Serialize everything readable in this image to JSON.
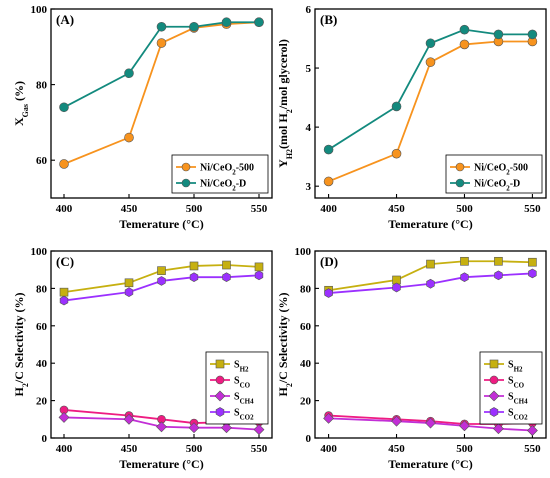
{
  "chart_data": [
    {
      "type": "line",
      "panel_label": "(A)",
      "xlabel": "Temerature (°C)",
      "ylabel_parts": [
        [
          "X",
          ""
        ],
        [
          "Gas",
          "sub"
        ],
        [
          " (%)",
          ""
        ]
      ],
      "x": [
        400,
        450,
        475,
        500,
        525,
        550
      ],
      "xlim": [
        390,
        560
      ],
      "xticks": [
        400,
        450,
        500,
        550
      ],
      "ylim": [
        50,
        100
      ],
      "yticks": [
        60,
        80,
        100
      ],
      "legend_position": "bottom-right",
      "series": [
        {
          "name_parts": [
            [
              "Ni/CeO",
              ""
            ],
            [
              "2",
              "sub"
            ],
            [
              "-500",
              ""
            ]
          ],
          "marker": "circle",
          "color": "#f7931e",
          "values": [
            59,
            66,
            91,
            95,
            96,
            96.5
          ]
        },
        {
          "name_parts": [
            [
              "Ni/CeO",
              ""
            ],
            [
              "2",
              "sub"
            ],
            [
              "-D",
              ""
            ]
          ],
          "marker": "circle",
          "color": "#138a7e",
          "values": [
            74,
            83,
            95.3,
            95.3,
            96.5,
            96.5
          ]
        }
      ]
    },
    {
      "type": "line",
      "panel_label": "(B)",
      "xlabel": "Temerature (°C)",
      "ylabel_parts": [
        [
          "Y",
          ""
        ],
        [
          "H2",
          "sub"
        ],
        [
          "(mol H",
          ""
        ],
        [
          "2",
          "sub"
        ],
        [
          "/mol glycerol)",
          ""
        ]
      ],
      "x": [
        400,
        450,
        475,
        500,
        525,
        550
      ],
      "xlim": [
        390,
        560
      ],
      "xticks": [
        400,
        450,
        500,
        550
      ],
      "ylim": [
        2.8,
        6
      ],
      "yticks": [
        3,
        4,
        5,
        6
      ],
      "legend_position": "bottom-right",
      "series": [
        {
          "name_parts": [
            [
              "Ni/CeO",
              ""
            ],
            [
              "2",
              "sub"
            ],
            [
              "-500",
              ""
            ]
          ],
          "marker": "circle",
          "color": "#f7931e",
          "values": [
            3.08,
            3.55,
            5.1,
            5.4,
            5.45,
            5.45
          ]
        },
        {
          "name_parts": [
            [
              "Ni/CeO",
              ""
            ],
            [
              "2",
              "sub"
            ],
            [
              "-D",
              ""
            ]
          ],
          "marker": "circle",
          "color": "#138a7e",
          "values": [
            3.62,
            4.35,
            5.42,
            5.65,
            5.57,
            5.57
          ]
        }
      ]
    },
    {
      "type": "line",
      "panel_label": "(C)",
      "xlabel": "Temerature (°C)",
      "ylabel_parts": [
        [
          "H",
          ""
        ],
        [
          "2",
          "sub"
        ],
        [
          "/C Selectivity (%)",
          ""
        ]
      ],
      "x": [
        400,
        450,
        475,
        500,
        525,
        550
      ],
      "xlim": [
        390,
        560
      ],
      "xticks": [
        400,
        450,
        500,
        550
      ],
      "ylim": [
        0,
        100
      ],
      "yticks": [
        0,
        20,
        40,
        60,
        80,
        100
      ],
      "legend_position": "right-center",
      "series": [
        {
          "name_parts": [
            [
              "S",
              ""
            ],
            [
              "H2",
              "sub"
            ]
          ],
          "marker": "square",
          "color": "#c6b010",
          "values": [
            78,
            83,
            89.5,
            92,
            92.5,
            91.5
          ]
        },
        {
          "name_parts": [
            [
              "S",
              ""
            ],
            [
              "CO",
              "sub"
            ]
          ],
          "marker": "circle",
          "color": "#ee1c82",
          "values": [
            15,
            12,
            10,
            8,
            8.5,
            8.5
          ]
        },
        {
          "name_parts": [
            [
              "S",
              ""
            ],
            [
              "CH4",
              "sub"
            ]
          ],
          "marker": "diamond",
          "color": "#c22ed6",
          "values": [
            11,
            10,
            6,
            5.5,
            5.5,
            4.5
          ]
        },
        {
          "name_parts": [
            [
              "S",
              ""
            ],
            [
              "CO2",
              "sub"
            ]
          ],
          "marker": "hexagon",
          "color": "#9b30ff",
          "values": [
            73.5,
            78,
            84,
            86,
            86,
            87
          ]
        }
      ]
    },
    {
      "type": "line",
      "panel_label": "(D)",
      "xlabel": "Temerature (°C)",
      "ylabel_parts": [
        [
          "H",
          ""
        ],
        [
          "2",
          "sub"
        ],
        [
          "/C Selectivity (%)",
          ""
        ]
      ],
      "x": [
        400,
        450,
        475,
        500,
        525,
        550
      ],
      "xlim": [
        390,
        560
      ],
      "xticks": [
        400,
        450,
        500,
        550
      ],
      "ylim": [
        0,
        100
      ],
      "yticks": [
        0,
        20,
        40,
        60,
        80,
        100
      ],
      "legend_position": "right-center",
      "series": [
        {
          "name_parts": [
            [
              "S",
              ""
            ],
            [
              "H2",
              "sub"
            ]
          ],
          "marker": "square",
          "color": "#c6b010",
          "values": [
            79,
            84.5,
            93,
            94.5,
            94.5,
            94
          ]
        },
        {
          "name_parts": [
            [
              "S",
              ""
            ],
            [
              "CO",
              "sub"
            ]
          ],
          "marker": "circle",
          "color": "#ee1c82",
          "values": [
            12,
            10,
            9,
            7.5,
            7.5,
            8
          ]
        },
        {
          "name_parts": [
            [
              "S",
              ""
            ],
            [
              "CH4",
              "sub"
            ]
          ],
          "marker": "diamond",
          "color": "#c22ed6",
          "values": [
            10.5,
            9,
            8,
            6.5,
            5,
            4
          ]
        },
        {
          "name_parts": [
            [
              "S",
              ""
            ],
            [
              "CO2",
              "sub"
            ]
          ],
          "marker": "hexagon",
          "color": "#9b30ff",
          "values": [
            77.5,
            80.5,
            82.5,
            86,
            87,
            88
          ]
        }
      ]
    }
  ]
}
